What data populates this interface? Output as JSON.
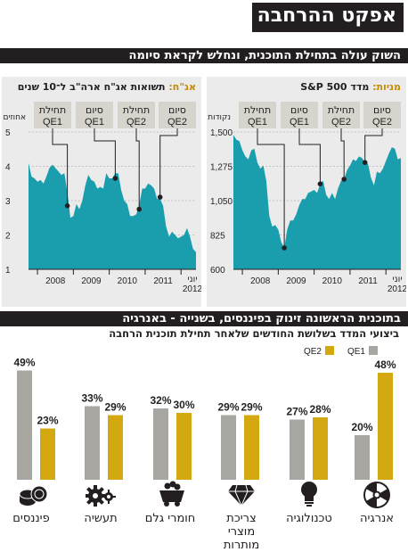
{
  "title": "אפקט ההרחבה",
  "section1": {
    "heading": "השוק עולה בתחילת התוכנית, ונחלש לקראת סיומה"
  },
  "left_panel": {
    "prefix": "אג\"ח:",
    "rest": " תשואות אג\"ח ארה\"ב ל־10 שנים"
  },
  "right_panel": {
    "prefix": "מניות:",
    "rest": " מדד S&P 500"
  },
  "section2": {
    "heading": "בתוכנית הראשונה זינוק בפיננסים, בשנייה - באנרגיה",
    "subheading": "ביצועי המדד בשלושת החודשים שלאחר תחילת תוכנית הרחבה"
  },
  "colors": {
    "area": "#1a9eae",
    "qe1": "#a8a6a1",
    "qe2": "#d4a810",
    "header_bg": "#231f20",
    "panel_bg": "#ebebeb"
  },
  "chart_data": [
    {
      "type": "area",
      "title": "תשואות אג\"ח ארה\"ב ל־10 שנים",
      "ylabel": "אחוזים",
      "ylim": [
        1,
        5
      ],
      "yticks": [
        "1",
        "2",
        "3",
        "4",
        "5"
      ],
      "xticks": [
        "2008",
        "2009",
        "2010",
        "2011",
        "יוני 2012"
      ],
      "x": [
        "2007-10",
        "2007-11",
        "2007-12",
        "2008-01",
        "2008-02",
        "2008-03",
        "2008-04",
        "2008-05",
        "2008-06",
        "2008-07",
        "2008-08",
        "2008-09",
        "2008-10",
        "2008-11",
        "2008-12",
        "2009-01",
        "2009-02",
        "2009-03",
        "2009-04",
        "2009-05",
        "2009-06",
        "2009-07",
        "2009-08",
        "2009-09",
        "2009-10",
        "2009-11",
        "2009-12",
        "2010-01",
        "2010-02",
        "2010-03",
        "2010-04",
        "2010-05",
        "2010-06",
        "2010-07",
        "2010-08",
        "2010-09",
        "2010-10",
        "2010-11",
        "2010-12",
        "2011-01",
        "2011-02",
        "2011-03",
        "2011-04",
        "2011-05",
        "2011-06",
        "2011-07",
        "2011-08",
        "2011-09",
        "2011-10",
        "2011-11",
        "2011-12",
        "2012-01",
        "2012-02",
        "2012-03",
        "2012-04",
        "2012-05",
        "2012-06"
      ],
      "y": [
        4.1,
        3.7,
        3.65,
        3.55,
        3.6,
        3.5,
        3.7,
        3.95,
        4.05,
        3.95,
        3.85,
        3.75,
        3.8,
        3.25,
        2.5,
        2.55,
        2.9,
        2.75,
        3.0,
        3.45,
        3.75,
        3.6,
        3.55,
        3.35,
        3.4,
        3.35,
        3.8,
        3.65,
        3.65,
        3.8,
        3.8,
        3.3,
        3.0,
        2.9,
        2.55,
        2.55,
        2.6,
        2.85,
        3.35,
        3.35,
        3.5,
        3.45,
        3.35,
        3.05,
        3.05,
        2.85,
        2.25,
        1.95,
        2.1,
        2.0,
        1.9,
        1.95,
        2.0,
        2.2,
        1.95,
        1.6,
        1.5
      ],
      "annotations": [
        {
          "line1": "תחילת",
          "line2": "QE1",
          "x": "2008-11",
          "y": 2.85
        },
        {
          "line1": "סיום",
          "line2": "QE1",
          "x": "2010-03",
          "y": 3.65
        },
        {
          "line1": "תחילת",
          "line2": "QE2",
          "x": "2010-11",
          "y": 2.75
        },
        {
          "line1": "סיום",
          "line2": "QE2",
          "x": "2011-06",
          "y": 3.1
        }
      ]
    },
    {
      "type": "area",
      "title": "מדד S&P 500",
      "ylabel": "נקודות",
      "ylim": [
        600,
        1500
      ],
      "yticks": [
        "600",
        "825",
        "1,050",
        "1,275",
        "1,500"
      ],
      "xticks": [
        "2008",
        "2009",
        "2010",
        "2011",
        "יוני 2012"
      ],
      "x": [
        "2007-10",
        "2007-11",
        "2007-12",
        "2008-01",
        "2008-02",
        "2008-03",
        "2008-04",
        "2008-05",
        "2008-06",
        "2008-07",
        "2008-08",
        "2008-09",
        "2008-10",
        "2008-11",
        "2008-12",
        "2009-01",
        "2009-02",
        "2009-03",
        "2009-04",
        "2009-05",
        "2009-06",
        "2009-07",
        "2009-08",
        "2009-09",
        "2009-10",
        "2009-11",
        "2009-12",
        "2010-01",
        "2010-02",
        "2010-03",
        "2010-04",
        "2010-05",
        "2010-06",
        "2010-07",
        "2010-08",
        "2010-09",
        "2010-10",
        "2010-11",
        "2010-12",
        "2011-01",
        "2011-02",
        "2011-03",
        "2011-04",
        "2011-05",
        "2011-06",
        "2011-07",
        "2011-08",
        "2011-09",
        "2011-10",
        "2011-11",
        "2011-12",
        "2012-01",
        "2012-02",
        "2012-03",
        "2012-04",
        "2012-05",
        "2012-06"
      ],
      "y": [
        1480,
        1450,
        1440,
        1380,
        1340,
        1320,
        1380,
        1390,
        1300,
        1260,
        1280,
        1180,
        950,
        880,
        890,
        860,
        780,
        740,
        860,
        920,
        920,
        960,
        1020,
        1060,
        1060,
        1100,
        1110,
        1120,
        1100,
        1160,
        1180,
        1090,
        1060,
        1100,
        1060,
        1130,
        1180,
        1190,
        1250,
        1280,
        1320,
        1310,
        1340,
        1330,
        1300,
        1290,
        1200,
        1150,
        1240,
        1230,
        1260,
        1310,
        1360,
        1400,
        1390,
        1320,
        1330
      ],
      "annotations": [
        {
          "line1": "תחילת",
          "line2": "QE1",
          "x": "2009-03",
          "y": 740
        },
        {
          "line1": "סיום",
          "line2": "QE1",
          "x": "2010-03",
          "y": 1160
        },
        {
          "line1": "תחילת",
          "line2": "QE2",
          "x": "2010-11",
          "y": 1190
        },
        {
          "line1": "סיום",
          "line2": "QE2",
          "x": "2011-06",
          "y": 1300
        }
      ]
    },
    {
      "type": "bar",
      "title": "ביצועי המדד בשלושת החודשים שלאחר תחילת תוכנית הרחבה",
      "categories": [
        "פיננסים",
        "תעשיה",
        "חומרי גלם",
        "צריכת מוצרי מותרות",
        "טכנולוגיה",
        "אנרגיה"
      ],
      "legend": [
        "QE1",
        "QE2"
      ],
      "series": [
        {
          "name": "QE1",
          "values": [
            49,
            33,
            32,
            29,
            27,
            20
          ]
        },
        {
          "name": "QE2",
          "values": [
            23,
            29,
            30,
            29,
            28,
            48
          ]
        }
      ],
      "value_labels": {
        "QE1": [
          "49%",
          "33%",
          "32%",
          "29%",
          "27%",
          "20%"
        ],
        "QE2": [
          "23%",
          "29%",
          "30%",
          "29%",
          "28%",
          "48%"
        ]
      },
      "category_icons": [
        "coins-icon",
        "gears-icon",
        "mine-cart-icon",
        "diamond-icon",
        "lightbulb-icon",
        "radiation-icon"
      ]
    }
  ]
}
